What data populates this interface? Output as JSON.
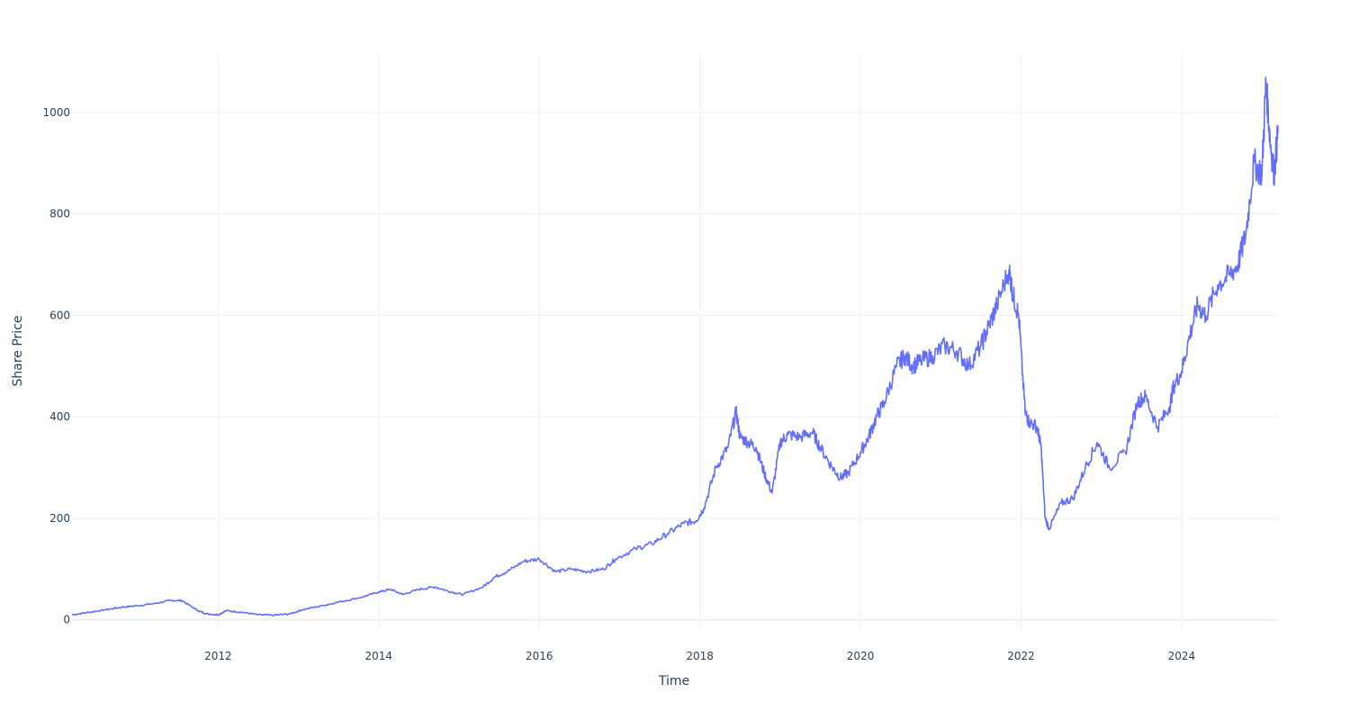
{
  "colors": {
    "background": "#ffffff",
    "grid": "#ebf0f8",
    "zeroline": "#ebf0f8",
    "line": "#636efa",
    "text": "#2a3f5f"
  },
  "chart_data": {
    "type": "line",
    "title": "",
    "xlabel": "Time",
    "ylabel": "Share Price",
    "xlim": [
      2010.18,
      2025.2
    ],
    "ylim": [
      -20,
      1115
    ],
    "x_ticks": [
      2012,
      2014,
      2016,
      2018,
      2020,
      2022,
      2024
    ],
    "x_tick_labels": [
      "2012",
      "2014",
      "2016",
      "2018",
      "2020",
      "2022",
      "2024"
    ],
    "y_ticks": [
      0,
      200,
      400,
      600,
      800,
      1000
    ],
    "y_tick_labels": [
      "0",
      "200",
      "400",
      "600",
      "800",
      "1000"
    ],
    "grid": true,
    "legend": "none",
    "series": [
      {
        "x": [
          2010.18,
          2010.4,
          2010.6,
          2010.8,
          2011.0,
          2011.2,
          2011.4,
          2011.55,
          2011.75,
          2011.85,
          2012.0,
          2012.1,
          2012.3,
          2012.5,
          2012.7,
          2012.9,
          2013.05,
          2013.3,
          2013.5,
          2013.8,
          2014.0,
          2014.15,
          2014.3,
          2014.5,
          2014.7,
          2014.9,
          2015.05,
          2015.3,
          2015.45,
          2015.6,
          2015.8,
          2016.0,
          2016.2,
          2016.4,
          2016.6,
          2016.8,
          2016.95,
          2017.2,
          2017.4,
          2017.6,
          2017.8,
          2017.95,
          2018.05,
          2018.2,
          2018.35,
          2018.45,
          2018.5,
          2018.6,
          2018.7,
          2018.8,
          2018.9,
          2019.0,
          2019.1,
          2019.25,
          2019.4,
          2019.5,
          2019.65,
          2019.75,
          2019.85,
          2020.0,
          2020.1,
          2020.2,
          2020.3,
          2020.45,
          2020.55,
          2020.65,
          2020.75,
          2020.9,
          2021.05,
          2021.2,
          2021.35,
          2021.5,
          2021.6,
          2021.7,
          2021.85,
          2021.9,
          2021.97,
          2022.05,
          2022.1,
          2022.2,
          2022.25,
          2022.3,
          2022.35,
          2022.5,
          2022.65,
          2022.8,
          2022.95,
          2023.1,
          2023.3,
          2023.45,
          2023.55,
          2023.7,
          2023.85,
          2023.9,
          2024.0,
          2024.1,
          2024.2,
          2024.3,
          2024.45,
          2024.6,
          2024.7,
          2024.8,
          2024.9,
          2025.0,
          2025.05,
          2025.1,
          2025.15,
          2025.2
        ],
        "y": [
          10,
          15,
          20,
          25,
          28,
          32,
          38,
          38,
          18,
          12,
          10,
          18,
          15,
          10,
          9,
          12,
          20,
          28,
          35,
          45,
          55,
          60,
          50,
          60,
          65,
          55,
          50,
          65,
          85,
          95,
          115,
          120,
          95,
          100,
          95,
          100,
          120,
          140,
          150,
          170,
          190,
          195,
          220,
          300,
          340,
          410,
          360,
          350,
          340,
          290,
          250,
          350,
          365,
          360,
          370,
          340,
          300,
          280,
          290,
          330,
          360,
          400,
          430,
          500,
          520,
          500,
          510,
          520,
          540,
          530,
          500,
          540,
          580,
          620,
          690,
          640,
          600,
          410,
          390,
          380,
          340,
          200,
          180,
          230,
          240,
          300,
          350,
          300,
          330,
          430,
          440,
          380,
          420,
          460,
          490,
          560,
          620,
          600,
          660,
          680,
          700,
          760,
          900,
          880,
          1060,
          950,
          880,
          960
        ]
      }
    ]
  }
}
